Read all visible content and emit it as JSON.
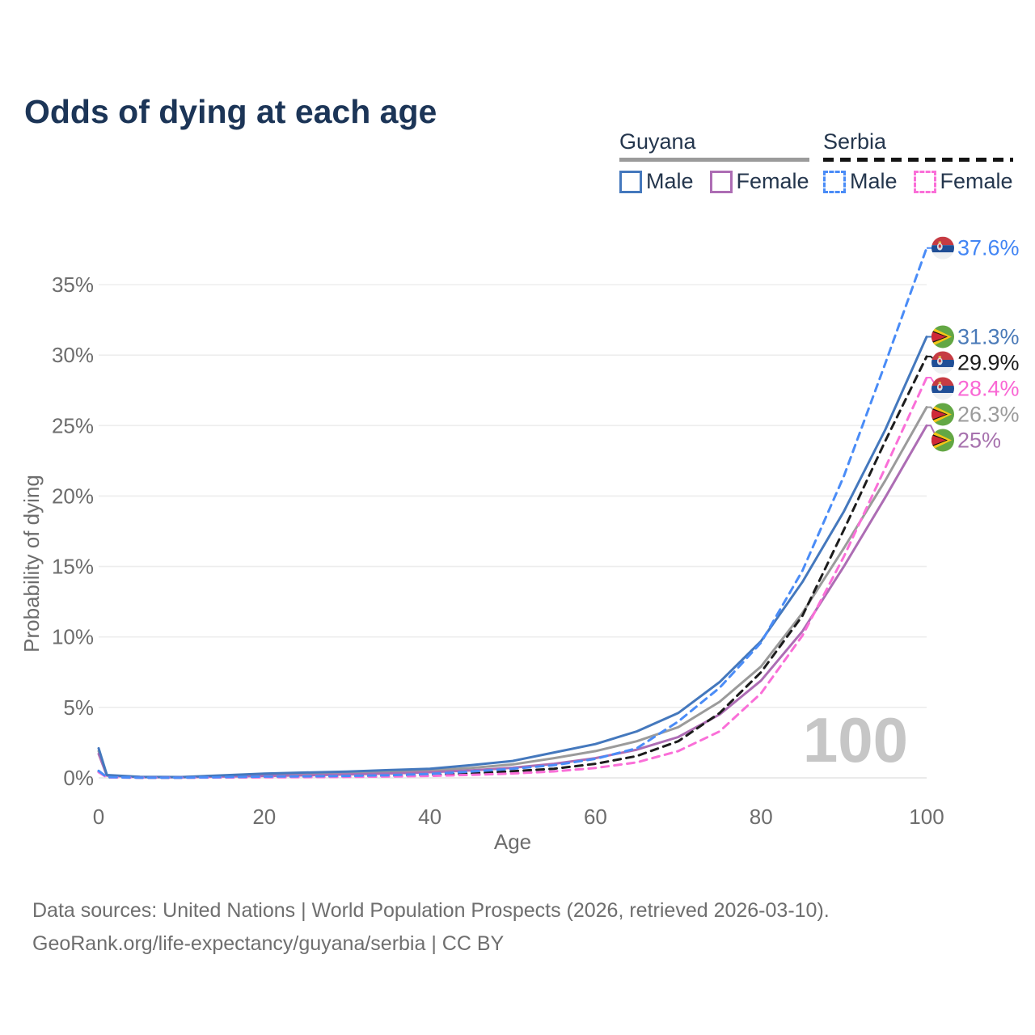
{
  "page": {
    "title": "Odds of dying at each age"
  },
  "watermark": "100",
  "legend": {
    "groups": [
      {
        "name": "Guyana",
        "dash": false,
        "underline_color": "#9b9b9b",
        "items": [
          {
            "label": "Male",
            "color": "#4478bd",
            "dash": false
          },
          {
            "label": "Female",
            "color": "#ad6db4",
            "dash": false
          }
        ]
      },
      {
        "name": "Serbia",
        "dash": true,
        "underline_color": "#141414",
        "items": [
          {
            "label": "Male",
            "color": "#4a8cf7",
            "dash": true
          },
          {
            "label": "Female",
            "color": "#fa6fd8",
            "dash": true
          }
        ]
      }
    ]
  },
  "chart_data": {
    "type": "line",
    "title": "Odds of dying at each age",
    "xlabel": "Age",
    "ylabel": "Probability of dying",
    "x_ticks": [
      0,
      20,
      40,
      60,
      80,
      100
    ],
    "y_ticks": [
      0,
      5,
      10,
      15,
      20,
      25,
      30,
      35
    ],
    "y_tick_labels": [
      "0%",
      "5%",
      "10%",
      "15%",
      "20%",
      "25%",
      "30%",
      "35%"
    ],
    "xlim": [
      0,
      100
    ],
    "ylim": [
      0,
      35
    ],
    "grid": "horizontal",
    "legend_position": "top-right",
    "x": [
      0,
      1,
      5,
      10,
      15,
      20,
      25,
      30,
      35,
      40,
      45,
      50,
      55,
      60,
      65,
      70,
      75,
      80,
      85,
      90,
      95,
      100
    ],
    "series": [
      {
        "id": "guyana-both",
        "name": "Guyana (both sexes)",
        "country": "Guyana",
        "flag": "guyana",
        "color": "#9b9b9b",
        "dash": false,
        "end_label": "26.3%",
        "label_color": "#9b9b9b",
        "values": [
          1.9,
          0.18,
          0.06,
          0.05,
          0.14,
          0.22,
          0.28,
          0.35,
          0.42,
          0.52,
          0.7,
          0.95,
          1.4,
          1.9,
          2.6,
          3.6,
          5.4,
          7.9,
          11.7,
          16.3,
          21.1,
          26.3
        ]
      },
      {
        "id": "guyana-female",
        "name": "Guyana Female",
        "country": "Guyana",
        "flag": "guyana",
        "color": "#ad6db4",
        "dash": false,
        "end_label": "25%",
        "label_color": "#a772ae",
        "values": [
          1.7,
          0.16,
          0.05,
          0.04,
          0.09,
          0.14,
          0.18,
          0.24,
          0.31,
          0.4,
          0.53,
          0.72,
          1.0,
          1.4,
          2.0,
          2.9,
          4.5,
          6.9,
          10.4,
          15.0,
          19.9,
          25.0
        ]
      },
      {
        "id": "guyana-male",
        "name": "Guyana Male",
        "country": "Guyana",
        "flag": "guyana",
        "color": "#4478bd",
        "dash": false,
        "end_label": "31.3%",
        "label_color": "#4a7ab8",
        "values": [
          2.1,
          0.2,
          0.07,
          0.06,
          0.18,
          0.3,
          0.38,
          0.45,
          0.55,
          0.65,
          0.9,
          1.2,
          1.8,
          2.4,
          3.3,
          4.6,
          6.8,
          9.7,
          13.9,
          18.9,
          24.7,
          31.3
        ]
      },
      {
        "id": "serbia-both",
        "name": "Serbia (both sexes)",
        "country": "Serbia",
        "flag": "serbia",
        "color": "#1d1d1d",
        "dash": true,
        "end_label": "29.9%",
        "label_color": "#1c1c1c",
        "values": [
          0.45,
          0.04,
          0.015,
          0.015,
          0.04,
          0.06,
          0.08,
          0.1,
          0.14,
          0.2,
          0.32,
          0.47,
          0.65,
          1.0,
          1.55,
          2.6,
          4.6,
          7.5,
          11.5,
          17.6,
          23.9,
          29.9
        ]
      },
      {
        "id": "serbia-female",
        "name": "Serbia Female",
        "country": "Serbia",
        "flag": "serbia",
        "color": "#fa6fd8",
        "dash": true,
        "end_label": "28.4%",
        "label_color": "#f967d4",
        "values": [
          0.4,
          0.035,
          0.01,
          0.01,
          0.03,
          0.04,
          0.05,
          0.07,
          0.1,
          0.14,
          0.21,
          0.31,
          0.46,
          0.7,
          1.1,
          1.9,
          3.3,
          6.0,
          10.1,
          15.7,
          22.0,
          28.4
        ]
      },
      {
        "id": "serbia-male",
        "name": "Serbia Male",
        "country": "Serbia",
        "flag": "serbia",
        "color": "#4a8cf7",
        "dash": true,
        "end_label": "37.6%",
        "label_color": "#4285f4",
        "values": [
          0.5,
          0.05,
          0.02,
          0.02,
          0.05,
          0.09,
          0.11,
          0.14,
          0.19,
          0.28,
          0.45,
          0.65,
          0.9,
          1.35,
          2.1,
          4.0,
          6.4,
          9.6,
          14.7,
          21.4,
          29.4,
          37.6
        ]
      }
    ]
  },
  "footer": {
    "line1": "Data sources: United Nations | World Population Prospects (2026, retrieved 2026-03-10).",
    "line2": "GeoRank.org/life-expectancy/guyana/serbia | CC BY"
  }
}
